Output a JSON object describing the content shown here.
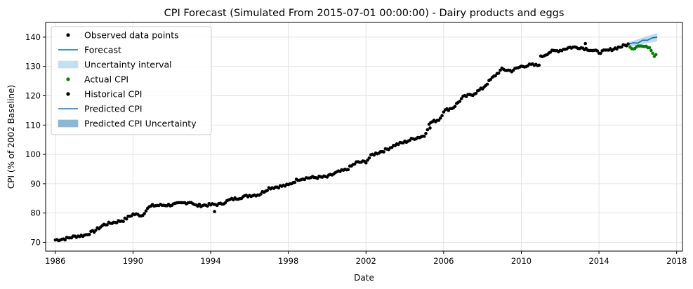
{
  "chart_data": {
    "type": "scatter",
    "title": "CPI Forecast (Simulated From 2015-07-01 00:00:00) - Dairy products and eggs",
    "xlabel": "Date",
    "ylabel": "CPI (% of 2002 Baseline)",
    "xlim": [
      1985.5,
      2018.3
    ],
    "ylim": [
      67,
      145
    ],
    "x_ticks": [
      1986,
      1990,
      1994,
      1998,
      2002,
      2006,
      2010,
      2014,
      2018
    ],
    "y_ticks": [
      70,
      80,
      90,
      100,
      110,
      120,
      130,
      140
    ],
    "grid": true,
    "legend_position": "top-left",
    "legend": [
      {
        "label": "Observed data points",
        "kind": "dot",
        "color": "#000000"
      },
      {
        "label": "Forecast",
        "kind": "line",
        "color": "#0072B2"
      },
      {
        "label": "Uncertainty interval",
        "kind": "band",
        "color": "#c6dfee"
      },
      {
        "label": "Actual CPI",
        "kind": "dot",
        "color": "#008000"
      },
      {
        "label": "Historical CPI",
        "kind": "dot",
        "color": "#000000"
      },
      {
        "label": "Predicted CPI",
        "kind": "line",
        "color": "#1f77b4"
      },
      {
        "label": "Predicted CPI Uncertainty",
        "kind": "band",
        "color": "#8ab8d6"
      }
    ],
    "colors": {
      "historical": "#000000",
      "actual": "#008000",
      "forecast": "#0072B2",
      "band": "#a9cfe6"
    },
    "historical_knots": [
      [
        1986.0,
        70.8
      ],
      [
        1986.5,
        71.2
      ],
      [
        1987.0,
        72.0
      ],
      [
        1987.5,
        72.4
      ],
      [
        1988.0,
        73.8
      ],
      [
        1988.5,
        76.0
      ],
      [
        1989.0,
        76.8
      ],
      [
        1989.5,
        77.5
      ],
      [
        1990.0,
        79.6
      ],
      [
        1990.5,
        79.2
      ],
      [
        1990.7,
        81.5
      ],
      [
        1991.0,
        82.5
      ],
      [
        1992.0,
        82.8
      ],
      [
        1993.0,
        83.8
      ],
      [
        1993.2,
        82.5
      ],
      [
        1994.0,
        82.8
      ],
      [
        1994.5,
        83.0
      ],
      [
        1995.0,
        84.5
      ],
      [
        1996.0,
        86.0
      ],
      [
        1996.5,
        86.3
      ],
      [
        1997.0,
        88.5
      ],
      [
        1998.0,
        89.5
      ],
      [
        1998.5,
        91.5
      ],
      [
        1999.0,
        92.0
      ],
      [
        2000.0,
        92.3
      ],
      [
        2000.5,
        93.8
      ],
      [
        2001.0,
        94.8
      ],
      [
        2001.5,
        97.2
      ],
      [
        2002.0,
        97.5
      ],
      [
        2002.3,
        99.8
      ],
      [
        2003.0,
        101.5
      ],
      [
        2003.5,
        103.2
      ],
      [
        2004.0,
        104.2
      ],
      [
        2004.5,
        105.5
      ],
      [
        2005.0,
        106.3
      ],
      [
        2005.3,
        110.8
      ],
      [
        2005.8,
        112.0
      ],
      [
        2006.0,
        114.8
      ],
      [
        2006.5,
        116.0
      ],
      [
        2007.0,
        119.5
      ],
      [
        2007.5,
        120.5
      ],
      [
        2008.0,
        122.5
      ],
      [
        2008.5,
        126.0
      ],
      [
        2009.0,
        129.0
      ],
      [
        2009.5,
        128.5
      ],
      [
        2010.0,
        130.0
      ],
      [
        2010.5,
        130.5
      ],
      [
        2010.9,
        130.3
      ],
      [
        2011.0,
        133.2
      ],
      [
        2011.5,
        135.0
      ],
      [
        2012.0,
        135.5
      ],
      [
        2012.5,
        136.5
      ],
      [
        2013.0,
        136.5
      ],
      [
        2013.5,
        135.8
      ],
      [
        2014.0,
        134.8
      ],
      [
        2014.5,
        135.5
      ],
      [
        2015.0,
        136.5
      ],
      [
        2015.5,
        137.5
      ]
    ],
    "historical_outliers": [
      [
        1994.2,
        80.5
      ],
      [
        2005.3,
        109.0
      ],
      [
        2013.3,
        137.8
      ]
    ],
    "actual_knots": [
      [
        2015.6,
        136.5
      ],
      [
        2015.8,
        136.0
      ],
      [
        2016.0,
        137.2
      ],
      [
        2016.3,
        136.8
      ],
      [
        2016.6,
        136.5
      ],
      [
        2016.7,
        135.5
      ],
      [
        2016.85,
        133.6
      ],
      [
        2017.0,
        134.5
      ]
    ],
    "forecast": {
      "x": [
        2015.5,
        2015.75,
        2016.0,
        2016.25,
        2016.5,
        2016.75,
        2017.0
      ],
      "y": [
        137.5,
        137.8,
        138.2,
        138.7,
        139.2,
        139.5,
        140.0
      ],
      "lower": [
        136.8,
        136.9,
        137.2,
        137.6,
        138.0,
        138.2,
        138.6
      ],
      "upper": [
        138.2,
        138.7,
        139.3,
        139.8,
        140.4,
        140.8,
        141.4
      ]
    }
  }
}
